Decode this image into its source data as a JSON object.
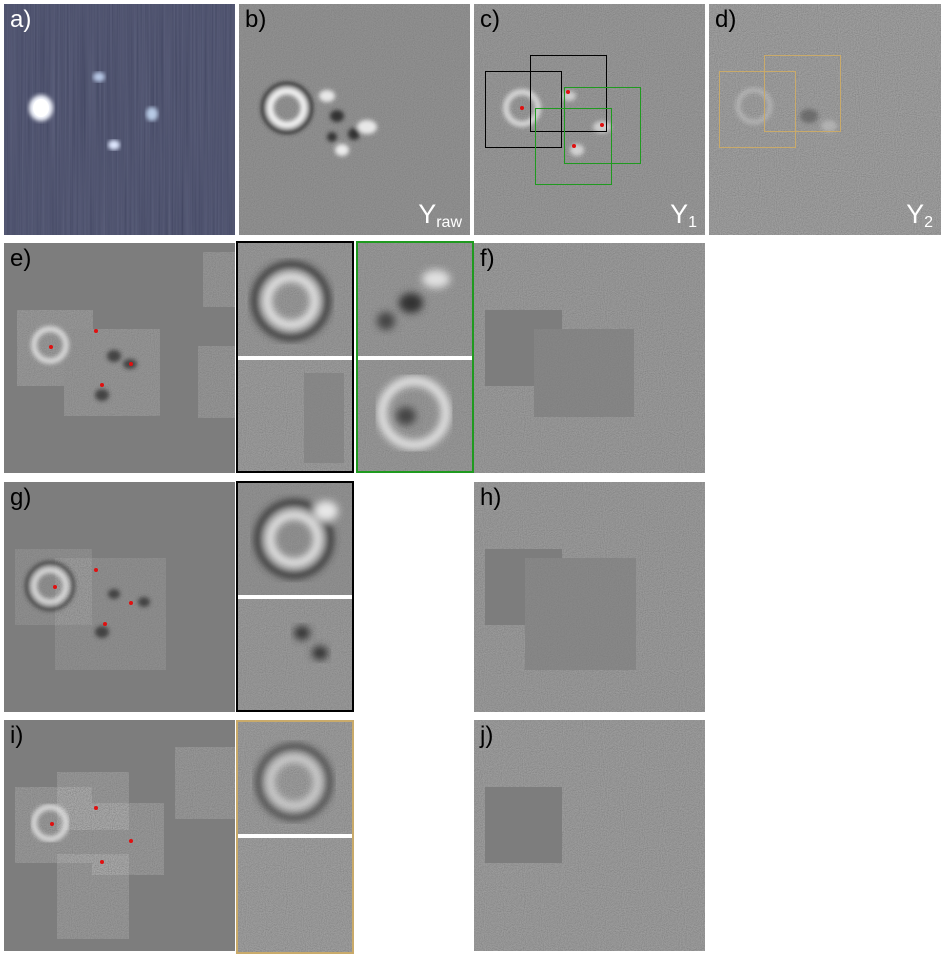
{
  "panels": {
    "a": {
      "label": "a)"
    },
    "b": {
      "label": "b)",
      "corner_main": "Y",
      "corner_sub": "raw"
    },
    "c": {
      "label": "c)",
      "corner_main": "Y",
      "corner_sub": "1"
    },
    "d": {
      "label": "d)",
      "corner_main": "Y",
      "corner_sub": "2"
    },
    "e": {
      "label": "e)"
    },
    "f": {
      "label": "f)"
    },
    "g": {
      "label": "g)"
    },
    "h": {
      "label": "h)"
    },
    "i": {
      "label": "i)"
    },
    "j": {
      "label": "j)"
    }
  },
  "colors": {
    "marker": "#e01010",
    "box_black": "#000000",
    "box_green": "#1f9a1f",
    "box_tan": "#c9aa6a",
    "afm_background": "#3a3f63"
  }
}
